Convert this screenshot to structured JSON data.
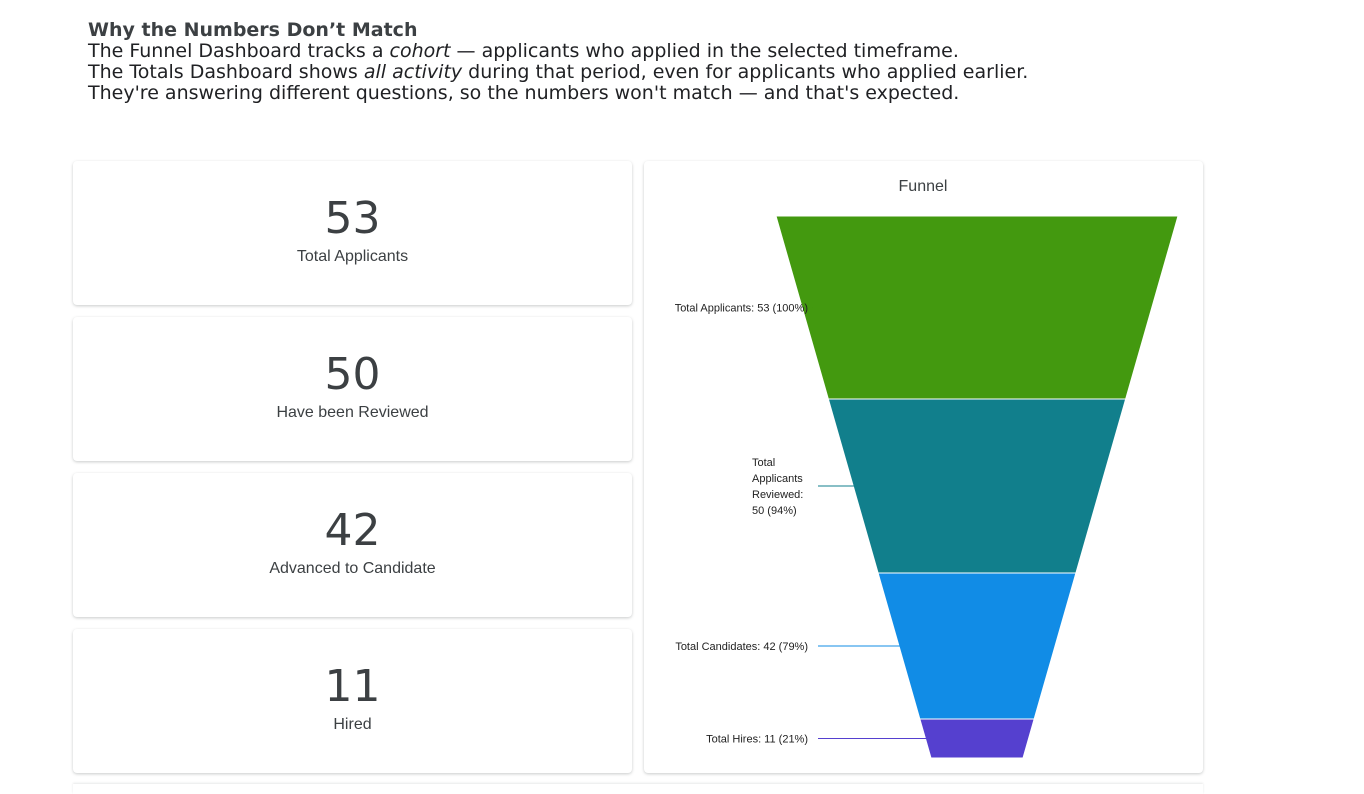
{
  "explainer": {
    "heading": "Why the Numbers Don’t Match",
    "line1_a": "The Funnel Dashboard tracks a ",
    "line1_em": "cohort",
    "line1_b": " — applicants who applied in the selected timeframe.",
    "line2_a": "The Totals Dashboard shows ",
    "line2_em": "all activity",
    "line2_b": " during that period, even for applicants who applied earlier.",
    "line3": "They're answering different questions, so the numbers won't match — and that's expected."
  },
  "kpis": [
    {
      "value": "53",
      "label": "Total Applicants"
    },
    {
      "value": "50",
      "label": "Have been Reviewed"
    },
    {
      "value": "42",
      "label": "Advanced to Candidate"
    },
    {
      "value": "11",
      "label": "Hired"
    }
  ],
  "chart_data": {
    "type": "funnel",
    "title": "Funnel",
    "stages": [
      {
        "name": "Total Applicants",
        "value": 53,
        "percent": 100,
        "label": "Total Applicants: 53 (100%)",
        "color": "#43990f"
      },
      {
        "name": "Total Applicants Reviewed",
        "value": 50,
        "percent": 94,
        "label": "Total Applicants Reviewed: 50 (94%)",
        "color": "#117f8c"
      },
      {
        "name": "Total Candidates",
        "value": 42,
        "percent": 79,
        "label": "Total Candidates: 42 (79%)",
        "color": "#118ce6"
      },
      {
        "name": "Total Hires",
        "value": 11,
        "percent": 21,
        "label": "Total Hires: 11 (21%)",
        "color": "#5540cf"
      }
    ]
  }
}
